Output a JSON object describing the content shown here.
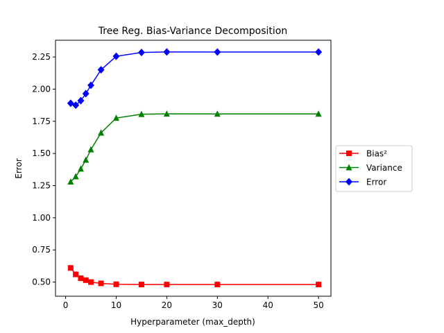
{
  "chart_data": {
    "type": "line",
    "title": "Tree Reg. Bias-Variance Decomposition",
    "xlabel": "Hyperparameter (max_depth)",
    "ylabel": "Error",
    "xlim": [
      -2,
      52.45
    ],
    "ylim": [
      0.39,
      2.38
    ],
    "xticks": [
      0,
      10,
      20,
      30,
      40,
      50
    ],
    "xtick_labels": [
      "0",
      "10",
      "20",
      "30",
      "40",
      "50"
    ],
    "yticks": [
      0.5,
      0.75,
      1.0,
      1.25,
      1.5,
      1.75,
      2.0,
      2.25
    ],
    "ytick_labels": [
      "0.50",
      "0.75",
      "1.00",
      "1.25",
      "1.50",
      "1.75",
      "2.00",
      "2.25"
    ],
    "grid": false,
    "legend_position": "center-right-outside",
    "x": [
      1,
      2,
      3,
      4,
      5,
      7,
      10,
      15,
      20,
      30,
      50
    ],
    "series": [
      {
        "name": "Bias²",
        "color": "#ff0000",
        "marker": "square",
        "values": [
          0.61,
          0.56,
          0.53,
          0.515,
          0.5,
          0.49,
          0.483,
          0.481,
          0.481,
          0.481,
          0.481
        ]
      },
      {
        "name": "Variance",
        "color": "#008000",
        "marker": "triangle",
        "values": [
          1.28,
          1.32,
          1.38,
          1.45,
          1.53,
          1.66,
          1.775,
          1.805,
          1.808,
          1.807,
          1.807
        ]
      },
      {
        "name": "Error",
        "color": "#0000ff",
        "marker": "diamond",
        "values": [
          1.89,
          1.875,
          1.91,
          1.965,
          2.03,
          2.15,
          2.255,
          2.285,
          2.289,
          2.288,
          2.288
        ]
      }
    ]
  }
}
